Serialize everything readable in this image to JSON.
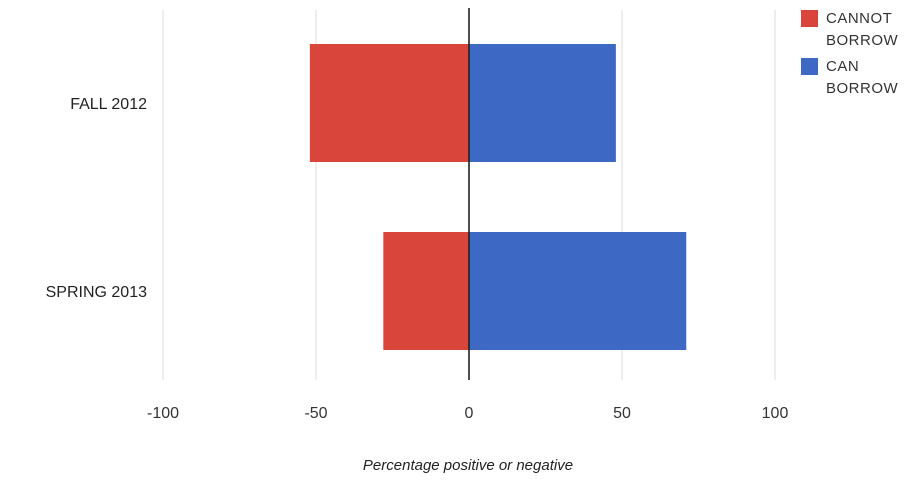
{
  "chart_data": {
    "type": "bar",
    "orientation": "horizontal",
    "stacked": "diverging",
    "categories": [
      "FALL 2012",
      "SPRING 2013"
    ],
    "series": [
      {
        "name": "CANNOT\nBORROW",
        "values": [
          -52,
          -28
        ],
        "color": "#d9453a"
      },
      {
        "name": "CAN\nBORROW",
        "values": [
          48,
          71
        ],
        "color": "#3d68c4"
      }
    ],
    "xlabel": "Percentage positive or negative",
    "xlim": [
      -100,
      100
    ],
    "xticks": [
      -100,
      -50,
      0,
      50,
      100
    ],
    "xtick_labels": [
      "-100",
      "-50",
      "0",
      "50",
      "100"
    ],
    "grid": "vertical",
    "legend_position": "top-right"
  }
}
